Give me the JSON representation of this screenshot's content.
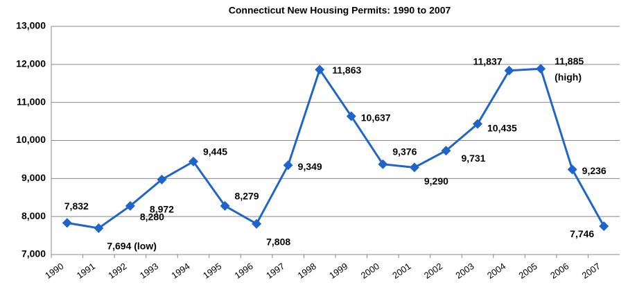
{
  "chart_data": {
    "type": "line",
    "title": "Connecticut New Housing Permits: 1990 to 2007",
    "categories": [
      "1990",
      "1991",
      "1992",
      "1993",
      "1994",
      "1995",
      "1996",
      "1997",
      "1998",
      "1999",
      "2000",
      "2001",
      "2002",
      "2003",
      "2004",
      "2005",
      "2006",
      "2007"
    ],
    "series": [
      {
        "name": "New Housing Permits",
        "color": "#1f64c8",
        "values": [
          7832,
          7694,
          8280,
          8972,
          9445,
          8279,
          7808,
          9349,
          11863,
          10637,
          9376,
          9290,
          9731,
          10435,
          11837,
          11885,
          9236,
          7746
        ],
        "value_labels": [
          "7,832",
          "7,694 (low)",
          "8,280",
          "8,972",
          "9,445",
          "8,279",
          "7,808",
          "9,349",
          "11,863",
          "10,637",
          "9,376",
          "9,290",
          "9,731",
          "10,435",
          "11,837",
          "11,885 (high)",
          "9,236",
          "7,746"
        ]
      }
    ],
    "ylim": [
      7000,
      13000
    ],
    "yticks": [
      {
        "value": 7000,
        "label": "7,000"
      },
      {
        "value": 8000,
        "label": "8,000"
      },
      {
        "value": 9000,
        "label": "9,000"
      },
      {
        "value": 10000,
        "label": "10,000"
      },
      {
        "value": 11000,
        "label": "11,000"
      },
      {
        "value": 12000,
        "label": "12,000"
      },
      {
        "value": 13000,
        "label": "13,000"
      }
    ],
    "grid": true
  }
}
